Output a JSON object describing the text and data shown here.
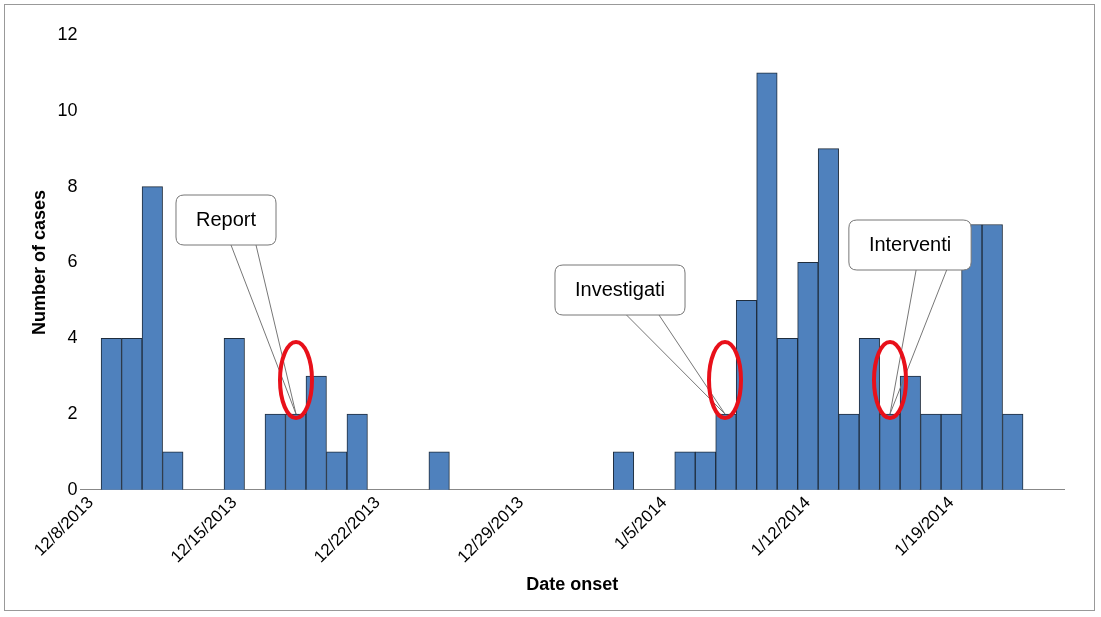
{
  "chart_data": {
    "type": "bar",
    "xlabel": "Date onset",
    "ylabel": "Number of cases",
    "x": [
      "2013-12-09",
      "2013-12-10",
      "2013-12-11",
      "2013-12-12",
      "2013-12-15",
      "2013-12-17",
      "2013-12-18",
      "2013-12-19",
      "2013-12-20",
      "2013-12-21",
      "2013-12-25",
      "2014-01-03",
      "2014-01-06",
      "2014-01-07",
      "2014-01-08",
      "2014-01-09",
      "2014-01-10",
      "2014-01-11",
      "2014-01-12",
      "2014-01-13",
      "2014-01-14",
      "2014-01-15",
      "2014-01-16",
      "2014-01-17",
      "2014-01-18",
      "2014-01-19",
      "2014-01-20",
      "2014-01-21",
      "2014-01-22"
    ],
    "values": [
      4,
      4,
      8,
      1,
      4,
      2,
      2,
      3,
      1,
      2,
      1,
      1,
      1,
      1,
      2,
      5,
      11,
      4,
      6,
      9,
      2,
      4,
      2,
      3,
      2,
      2,
      7,
      7,
      2
    ],
    "color": "#4f81bd",
    "xlim": [
      "2013-12-07T12:00",
      "2014-01-24T12:00"
    ],
    "xticks": [
      {
        "value": "2013-12-08",
        "label": "12/8/2013"
      },
      {
        "value": "2013-12-15",
        "label": "12/15/2013"
      },
      {
        "value": "2013-12-22",
        "label": "12/22/2013"
      },
      {
        "value": "2013-12-29",
        "label": "12/29/2013"
      },
      {
        "value": "2014-01-05",
        "label": "1/5/2014"
      },
      {
        "value": "2014-01-12",
        "label": "1/12/2014"
      },
      {
        "value": "2014-01-19",
        "label": "1/19/2014"
      }
    ],
    "ylim": [
      0,
      12
    ],
    "yticks": [
      0,
      2,
      4,
      6,
      8,
      10,
      12
    ],
    "grid": false,
    "legend": false,
    "annotations": [
      "Report",
      "Investigati",
      "Interventi"
    ]
  }
}
